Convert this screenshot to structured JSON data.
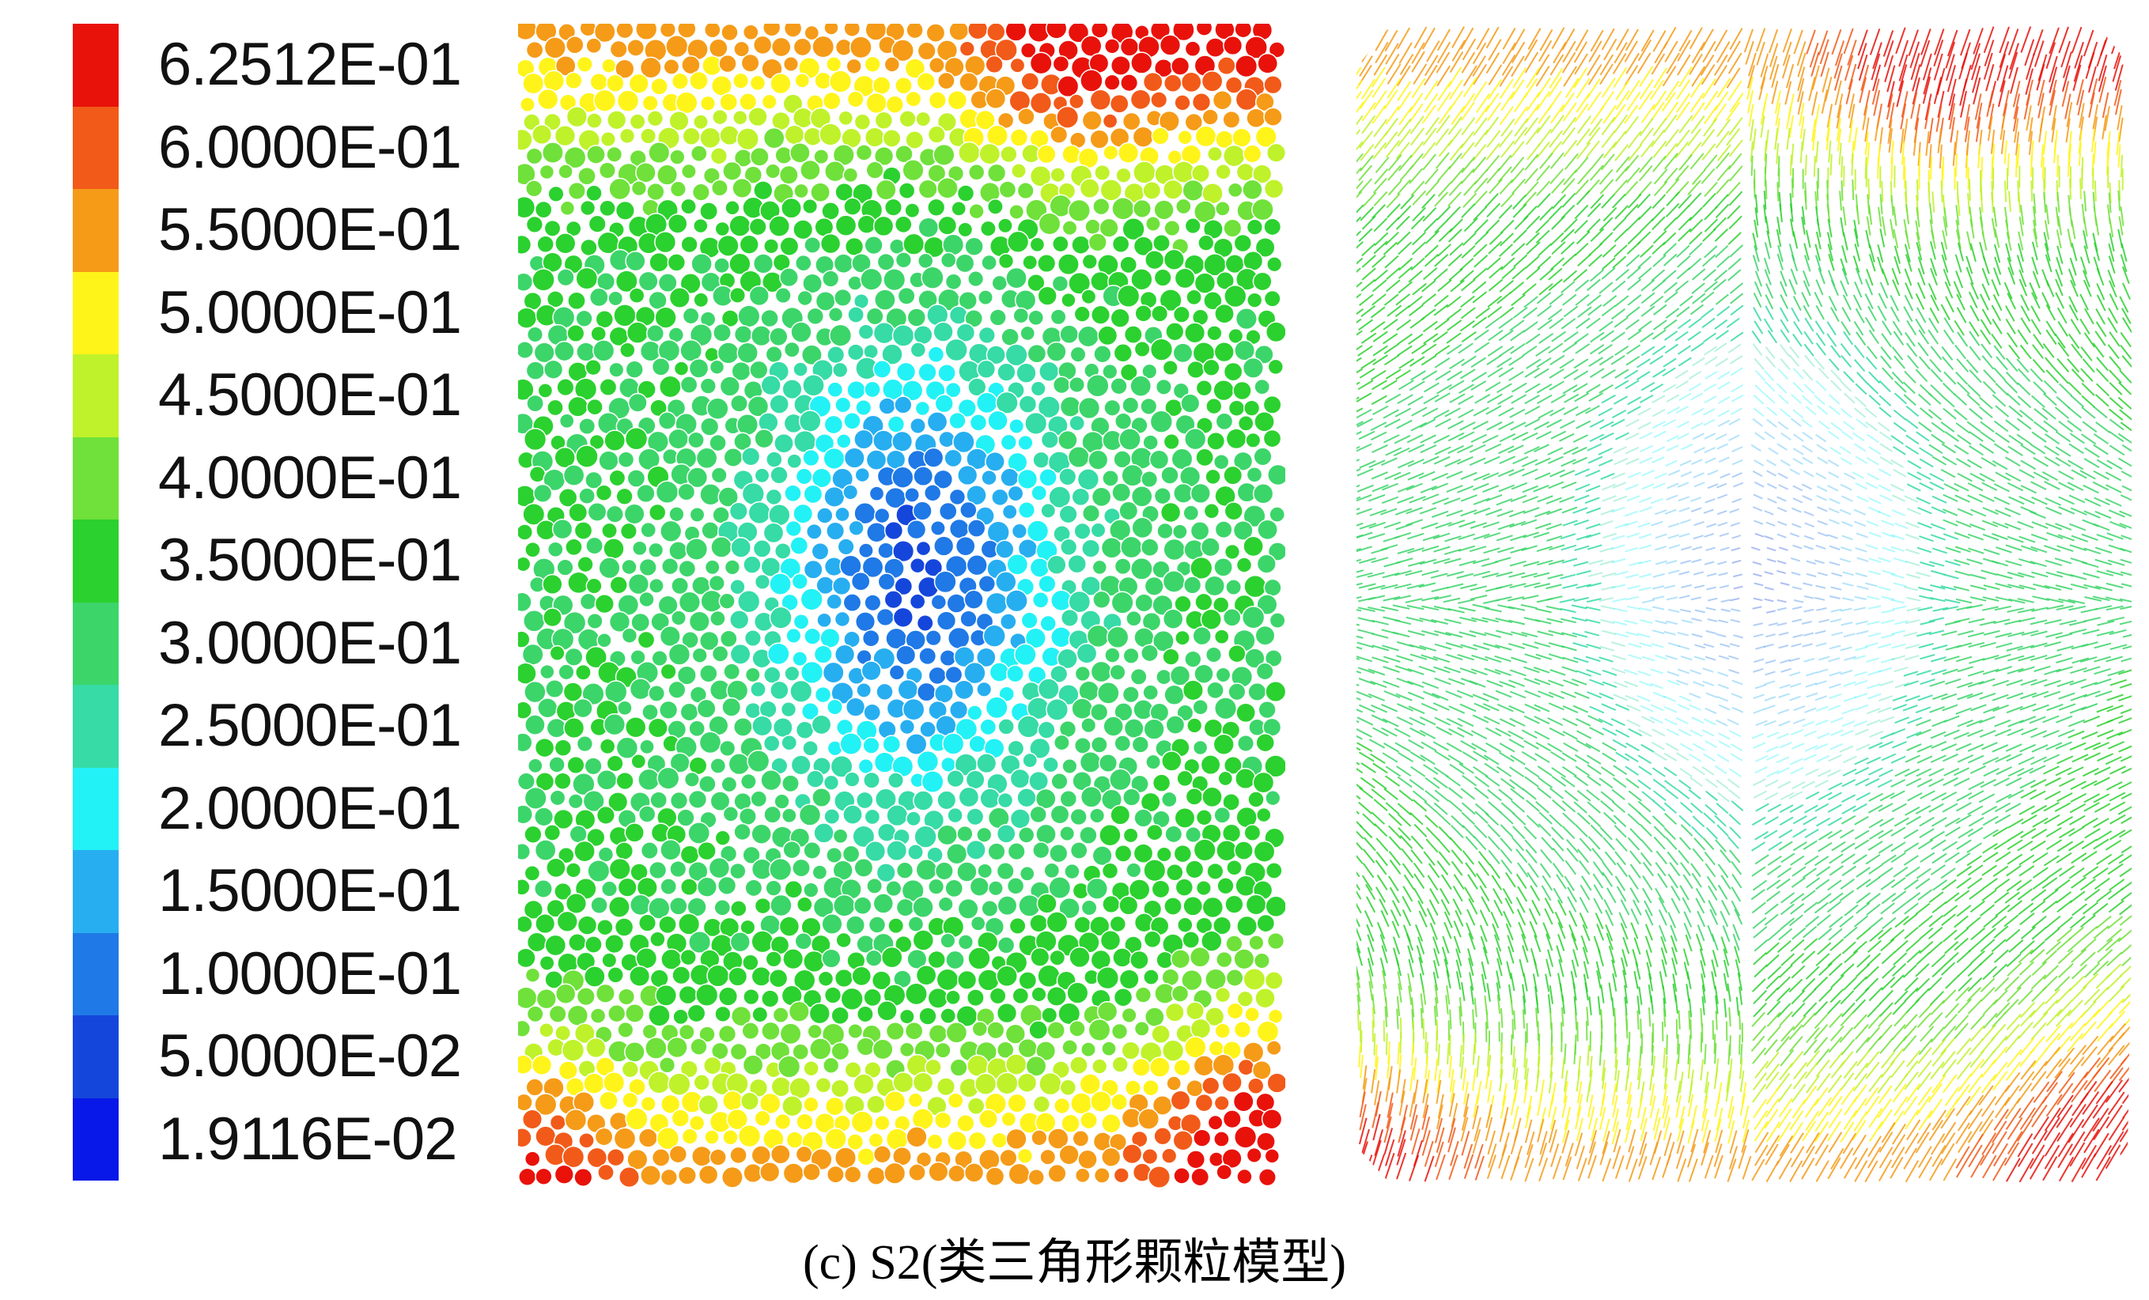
{
  "legend": {
    "labels": [
      "6.2512E-01",
      "6.0000E-01",
      "5.5000E-01",
      "5.0000E-01",
      "4.5000E-01",
      "4.0000E-01",
      "3.5000E-01",
      "3.0000E-01",
      "2.5000E-01",
      "2.0000E-01",
      "1.5000E-01",
      "1.0000E-01",
      "5.0000E-02",
      "1.9116E-02"
    ],
    "colors": [
      "#e8120b",
      "#f25a19",
      "#f59b18",
      "#fff41a",
      "#bff22a",
      "#6fe13a",
      "#2bd12f",
      "#3cd56a",
      "#36dba6",
      "#22f2f5",
      "#27aef0",
      "#1f79e6",
      "#1546dc",
      "#0818e8"
    ]
  },
  "caption": "(c) S2(类三角形颗粒模型)"
}
